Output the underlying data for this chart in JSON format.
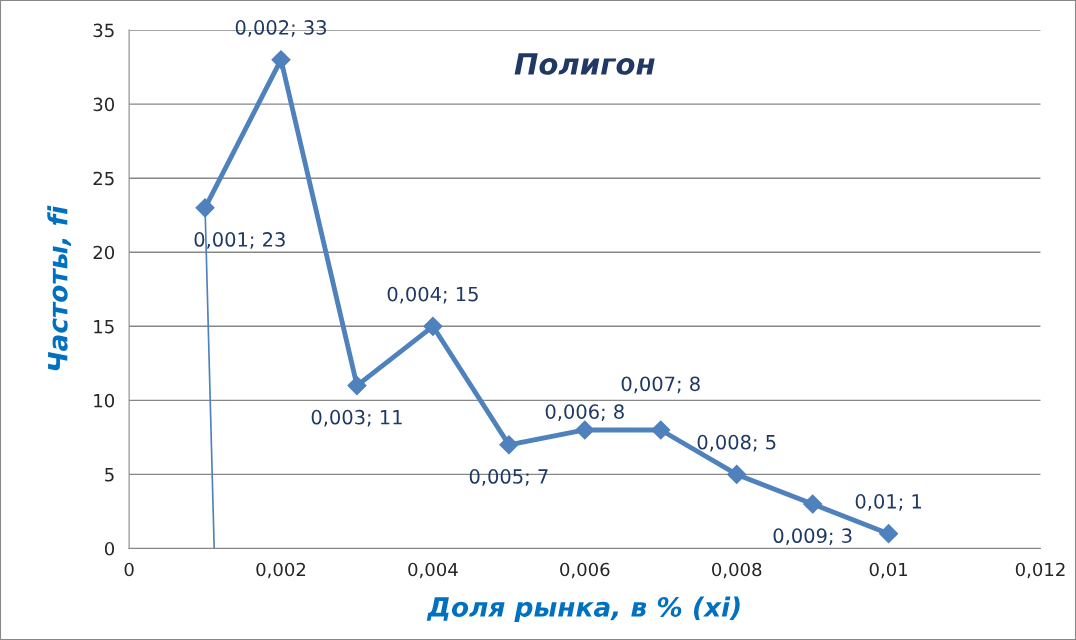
{
  "chart_data": {
    "type": "line",
    "title": "Полигон",
    "xlabel": "Доля рынка, в % (xi)",
    "ylabel": "Частоты, fi",
    "series": [
      {
        "color": "#4f81bd",
        "x": [
          0.001,
          0.002,
          0.003,
          0.004,
          0.005,
          0.006,
          0.007,
          0.008,
          0.009,
          0.01
        ],
        "values": [
          23,
          33,
          11,
          15,
          7,
          8,
          8,
          5,
          3,
          1
        ],
        "marker": "diamond",
        "value_labels": [
          "0,001; 23",
          "0,002; 33",
          "0,003; 11",
          "0,004; 15",
          "0,005; 7",
          "0,006; 8",
          "0,007; 8",
          "0,008; 5",
          "0,009; 3",
          "0,01; 1"
        ]
      },
      {
        "color": "#4f81bd",
        "x": [
          0.001,
          0.00112
        ],
        "values": [
          23,
          0
        ],
        "marker": "none"
      }
    ],
    "xlim": [
      0,
      0.012
    ],
    "ylim": [
      0,
      35
    ],
    "xticks": [
      0,
      {
        "value": 0.002,
        "label": "0,002"
      },
      {
        "value": 0.004,
        "label": "0,004"
      },
      {
        "value": 0.006,
        "label": "0,006"
      },
      {
        "value": 0.008,
        "label": "0,008"
      },
      {
        "value": 0.01,
        "label": "0,01"
      },
      {
        "value": 0.012,
        "label": "0,012"
      }
    ],
    "yticks": [
      0,
      5,
      10,
      15,
      20,
      25,
      30,
      35
    ],
    "grid": "y",
    "legend": false
  }
}
